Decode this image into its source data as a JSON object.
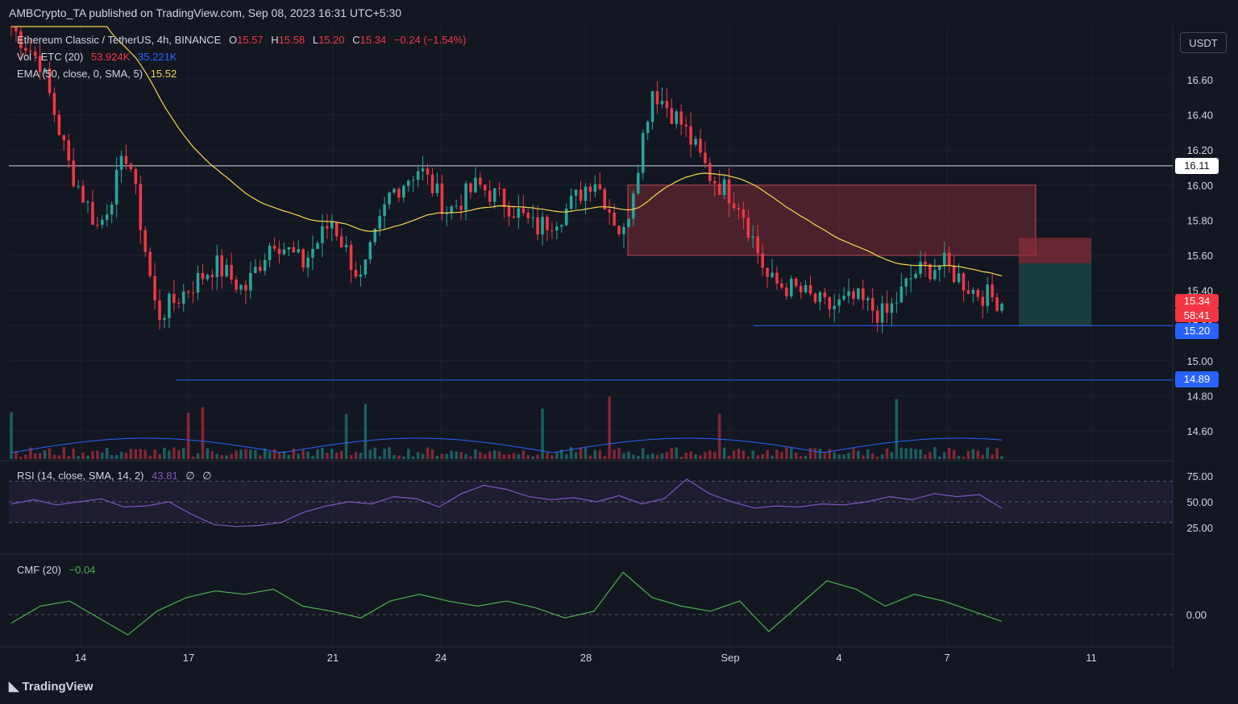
{
  "header": {
    "published_text": "AMBCrypto_TA published on TradingView.com, Sep 08, 2023 16:31 UTC+5:30"
  },
  "currency_button": "USDT",
  "footer": {
    "brand": "TradingView"
  },
  "legend": {
    "symbol": "Ethereum Classic / TetherUS, 4h, BINANCE",
    "ohlc": {
      "open_label": "O",
      "open": "15.57",
      "high_label": "H",
      "high": "15.58",
      "low_label": "L",
      "low": "15.20",
      "close_label": "C",
      "close": "15.34",
      "change": "−0.24 (−1.54%)"
    },
    "vol": {
      "label": "Vol · ETC (20)",
      "value1": "53.924K",
      "value2": "35.221K"
    },
    "ema": {
      "label": "EMA (50, close, 0, SMA, 5)",
      "value": "15.52"
    },
    "rsi": {
      "label": "RSI (14, close, SMA, 14, 2)",
      "value": "43.81",
      "extra1": "∅",
      "extra2": "∅"
    },
    "cmf": {
      "label": "CMF (20)",
      "value": "−0.04"
    }
  },
  "price_labels": {
    "resistance": "16.11",
    "current_price": "15.34",
    "countdown": "58:41",
    "low": "15.20",
    "support": "14.89"
  },
  "colors": {
    "bull": "#26a69a",
    "bear": "#f23645",
    "ema": "#f7d54c",
    "vol_ma": "#2962ff",
    "rsi": "#7e57c2",
    "cmf": "#4caf50",
    "white_line": "#d1d4dc",
    "blue_line": "#2962ff",
    "zone": "#7a2a35",
    "tp_zone": "#1d4a4a"
  },
  "chart_data": [
    {
      "type": "candlestick",
      "title": "Ethereum Classic / TetherUS, 4h, BINANCE",
      "y_axis_ticks": [
        14.6,
        14.8,
        15.0,
        15.2,
        15.4,
        15.6,
        15.8,
        16.0,
        16.2,
        16.4,
        16.6
      ],
      "ylim": [
        14.48,
        16.94
      ],
      "x_ticks": [
        "14",
        "17",
        "21",
        "24",
        "28",
        "Sep",
        "4",
        "7",
        "11"
      ],
      "horizontal_lines": [
        {
          "value": 16.11,
          "style": "white"
        },
        {
          "value": 15.2,
          "style": "blue"
        },
        {
          "value": 14.89,
          "style": "blue"
        }
      ],
      "zones": [
        {
          "name": "supply-zone",
          "from": 15.6,
          "to": 16.0
        }
      ],
      "close_path": [
        16.9,
        16.7,
        16.1,
        15.75,
        16.2,
        15.25,
        15.4,
        15.55,
        15.4,
        15.7,
        15.55,
        15.8,
        15.45,
        15.95,
        16.1,
        15.85,
        16.0,
        15.9,
        15.75,
        15.85,
        16.05,
        15.7,
        16.55,
        16.35,
        16.05,
        15.9,
        15.45,
        15.4,
        15.3,
        15.35,
        15.25,
        15.5,
        15.55,
        15.4,
        15.34
      ]
    },
    {
      "type": "bar",
      "title": "Vol · ETC (20)",
      "last_values": [
        "53.924K",
        "35.221K"
      ]
    },
    {
      "type": "line",
      "title": "RSI (14, close, SMA, 14, 2)",
      "y_axis_ticks": [
        25.0,
        50.0,
        75.0
      ],
      "bands": [
        30,
        70
      ],
      "last_value": 43.81,
      "values": [
        48,
        52,
        47,
        50,
        53,
        45,
        46,
        50,
        38,
        28,
        26,
        27,
        30,
        40,
        46,
        50,
        48,
        55,
        53,
        45,
        58,
        66,
        62,
        55,
        52,
        54,
        50,
        56,
        48,
        53,
        72,
        58,
        50,
        44,
        46,
        45,
        48,
        47,
        50,
        55,
        52,
        58,
        55,
        57,
        43.81
      ]
    },
    {
      "type": "line",
      "title": "CMF (20)",
      "y_axis_ticks": [
        0.0
      ],
      "last_value": -0.04,
      "values": [
        -0.05,
        0.05,
        0.08,
        -0.02,
        -0.12,
        0.02,
        0.1,
        0.14,
        0.12,
        0.15,
        0.05,
        0.02,
        -0.02,
        0.08,
        0.12,
        0.08,
        0.05,
        0.08,
        0.04,
        -0.02,
        0.02,
        0.25,
        0.1,
        0.05,
        0.02,
        0.08,
        -0.1,
        0.05,
        0.2,
        0.15,
        0.05,
        0.12,
        0.08,
        0.02,
        -0.04
      ]
    }
  ]
}
